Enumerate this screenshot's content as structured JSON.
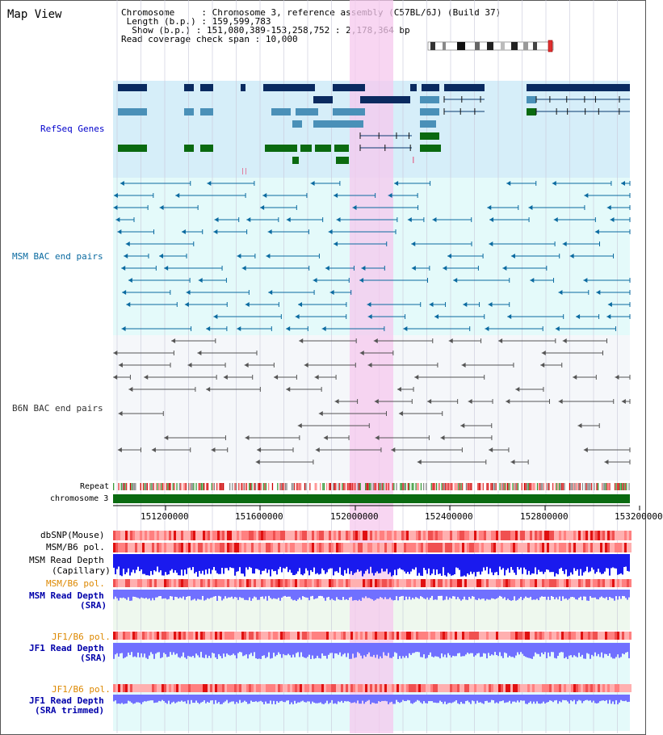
{
  "page": {
    "title": "Map View"
  },
  "header": {
    "chromosome_label": "Chromosome    ",
    "chromosome_value": "Chromosome 3, reference assembly (C57BL/6J) (Build 37)",
    "length_label": " Length (b.p.)",
    "length_value": "159,599,783",
    "show_label": "  Show (b.p.)",
    "show_value": "151,080,389-153,258,752 : 2,178,364 bp",
    "coverage_label": "Read coverage check span",
    "coverage_value": "10,000"
  },
  "tracks": {
    "refseq": {
      "label": "RefSeq Genes",
      "color": "#0000cc"
    },
    "msm_bac": {
      "label": "MSM BAC end pairs",
      "color": "#0a6aa0"
    },
    "b6n_bac": {
      "label": "B6N BAC end pairs",
      "color": "#333333"
    },
    "repeat": {
      "label": "Repeat"
    },
    "chromosome": {
      "label": "chromosome 3"
    },
    "dbsnp": {
      "label": "dbSNP(Mouse)"
    },
    "msm_b6_pol": {
      "label": "MSM/B6 pol."
    },
    "msm_depth_cap": {
      "label1": "MSM Read Depth",
      "label2": "(Capillary)"
    },
    "msm_b6_pol_sra": {
      "label": "MSM/B6 pol.",
      "color": "#dd8800"
    },
    "msm_depth_sra": {
      "label1": "MSM Read Depth",
      "label2": "(SRA)",
      "color": "#0000aa"
    },
    "jf1_b6_pol": {
      "label": "JF1/B6 pol.",
      "color": "#dd8800"
    },
    "jf1_depth_sra": {
      "label1": "JF1 Read Depth",
      "label2": "(SRA)",
      "color": "#0000aa"
    },
    "jf1_b6_pol2": {
      "label": "JF1/B6 pol.",
      "color": "#dd8800"
    },
    "jf1_depth_trim": {
      "label1": "JF1 Read Depth",
      "label2": "(SRA trimmed)",
      "color": "#0000aa"
    }
  },
  "axis": {
    "ticks": [
      "151200000",
      "151600000",
      "152000000",
      "152400000",
      "152800000",
      "153200000"
    ]
  },
  "colors": {
    "refseq_dark": "#0a2a60",
    "refseq_mid": "#4a90b8",
    "refseq_green": "#0a6a10",
    "highlight": "#f8d4f0",
    "depth_blue": "#1a1aee",
    "depth_light": "#7070ff"
  }
}
